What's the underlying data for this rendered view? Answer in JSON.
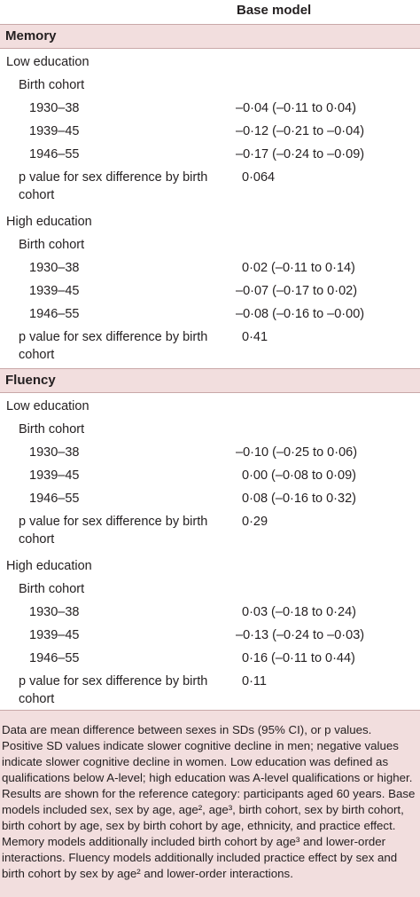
{
  "header": {
    "column_title": "Base model"
  },
  "memory": {
    "title": "Memory",
    "low": {
      "label": "Low education",
      "cohort_label": "Birth cohort",
      "rows": [
        {
          "cohort": "1930–38",
          "value": "–0·04 (–0·11 to 0·04)"
        },
        {
          "cohort": "1939–45",
          "value": "–0·12 (–0·21 to –0·04)"
        },
        {
          "cohort": "1946–55",
          "value": "–0·17 (–0·24 to –0·09)"
        }
      ],
      "p_label": "p value for sex difference by birth cohort",
      "p_value": "0·064"
    },
    "high": {
      "label": "High education",
      "cohort_label": "Birth cohort",
      "rows": [
        {
          "cohort": "1930–38",
          "value": "0·02 (–0·11 to 0·14)"
        },
        {
          "cohort": "1939–45",
          "value": "–0·07 (–0·17 to 0·02)"
        },
        {
          "cohort": "1946–55",
          "value": "–0·08 (–0·16 to –0·00)"
        }
      ],
      "p_label": "p value for sex difference by birth cohort",
      "p_value": "0·41"
    }
  },
  "fluency": {
    "title": "Fluency",
    "low": {
      "label": "Low education",
      "cohort_label": "Birth cohort",
      "rows": [
        {
          "cohort": "1930–38",
          "value": "–0·10 (–0·25 to 0·06)"
        },
        {
          "cohort": "1939–45",
          "value": "0·00 (–0·08 to 0·09)"
        },
        {
          "cohort": "1946–55",
          "value": "0·08 (–0·16 to 0·32)"
        }
      ],
      "p_label": "p value for sex difference by birth cohort",
      "p_value": "0·29"
    },
    "high": {
      "label": "High education",
      "cohort_label": "Birth cohort",
      "rows": [
        {
          "cohort": "1930–38",
          "value": "0·03 (–0·18 to 0·24)"
        },
        {
          "cohort": "1939–45",
          "value": "–0·13 (–0·24 to –0·03)"
        },
        {
          "cohort": "1946–55",
          "value": "0·16 (–0·11 to 0·44)"
        }
      ],
      "p_label": "p value for sex difference by birth cohort",
      "p_value": "0·11"
    }
  },
  "footnote": [
    "Data are mean difference between sexes in SDs (95% CI), or p values.",
    "Positive SD values indicate slower cognitive decline in men; negative values indicate slower cognitive decline in women. Low education was defined as qualifications below A-level; high education was A-level qualifications or higher. Results are shown for the reference category: participants aged 60 years. Base models included sex, sex by age, age², age³, birth cohort, sex by birth cohort, birth cohort by age, sex by birth cohort by age, ethnicity, and practice effect. Memory models additionally included birth cohort by age³ and lower-order interactions. Fluency models additionally included practice effect by sex and birth cohort by sex by age² and lower-order interactions."
  ]
}
